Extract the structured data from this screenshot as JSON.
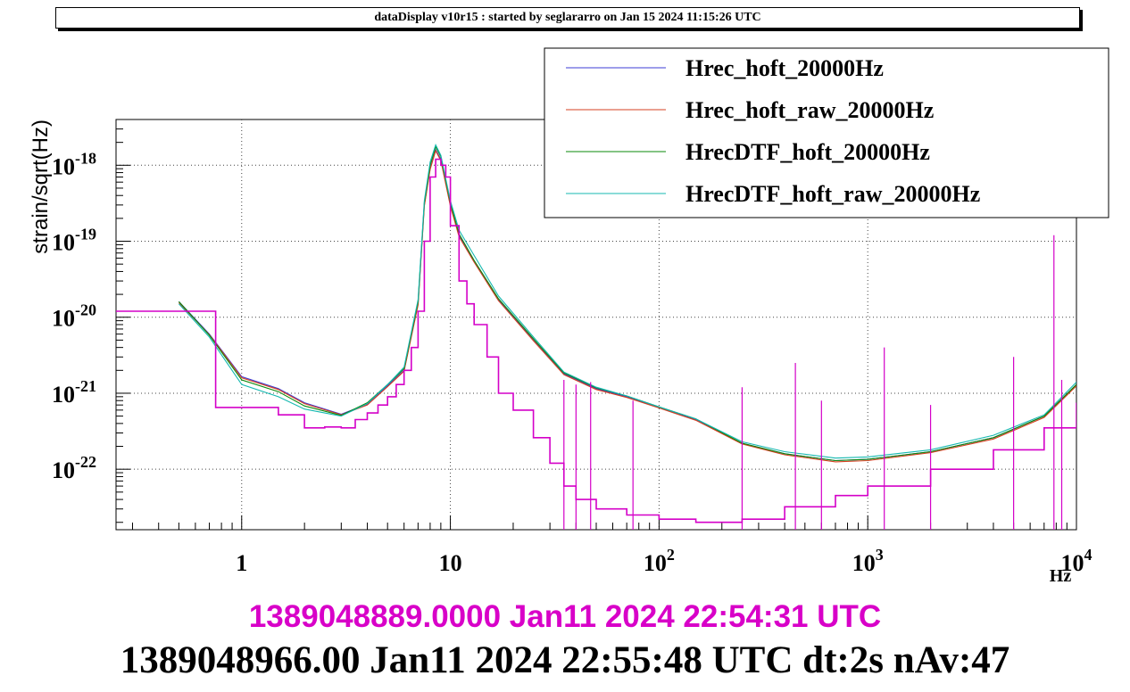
{
  "header": {
    "title": "dataDisplay v10r15 : started by seglararro on Jan 15 2024 11:15:26 UTC"
  },
  "footer": {
    "timestamp_start": "1389048889.0000 Jan11 2024 22:54:31 UTC",
    "timestamp_end": "1389048966.00 Jan11 2024 22:55:48 UTC dt:2s nAv:47"
  },
  "colors": {
    "Hrec_hoft_20000Hz": "#3c3cd6",
    "Hrec_hoft_raw_20000Hz": "#d64020",
    "HrecDTF_hoft_20000Hz": "#0a8a0a",
    "HrecDTF_hoft_raw_20000Hz": "#14b8b0",
    "overlay": "#d400c8"
  },
  "chart_data": {
    "type": "line",
    "title": "",
    "xlabel": "Hz",
    "ylabel": "strain/sqrt(Hz)",
    "xscale": "log",
    "yscale": "log",
    "xlim": [
      0.25,
      10000
    ],
    "ylim": [
      1.6e-23,
      4e-18
    ],
    "grid": true,
    "legend_position": "top-right",
    "x_ticks": [
      {
        "value": 1,
        "base": "1",
        "exp": ""
      },
      {
        "value": 10,
        "base": "10",
        "exp": ""
      },
      {
        "value": 100,
        "base": "10",
        "exp": "2"
      },
      {
        "value": 1000,
        "base": "10",
        "exp": "3"
      },
      {
        "value": 10000,
        "base": "10",
        "exp": "4"
      }
    ],
    "y_ticks": [
      {
        "value": 1e-22,
        "base": "10",
        "exp": "-22"
      },
      {
        "value": 1e-21,
        "base": "10",
        "exp": "-21"
      },
      {
        "value": 1e-20,
        "base": "10",
        "exp": "-20"
      },
      {
        "value": 1e-19,
        "base": "10",
        "exp": "-19"
      },
      {
        "value": 1e-18,
        "base": "10",
        "exp": "-18"
      }
    ],
    "series": [
      {
        "name": "Hrec_hoft_20000Hz",
        "x": [
          0.5,
          0.7,
          1.0,
          1.5,
          2.0,
          3.0,
          4.0,
          5.0,
          6.0,
          7.0,
          7.5,
          8.0,
          8.5,
          9.0,
          10.0,
          11.0,
          13.0,
          17.0,
          25.0,
          35.0,
          50.0,
          70.0,
          100.0,
          150.0,
          250.0,
          400.0,
          700.0,
          1000.0,
          2000.0,
          4000.0,
          7000.0,
          10000.0
        ],
        "y": [
          1.6e-20,
          6e-21,
          1.65e-21,
          1.15e-21,
          7.5e-22,
          5.3e-22,
          7.2e-22,
          1.25e-21,
          2e-21,
          1.5e-20,
          3e-19,
          9e-19,
          1.6e-18,
          1.2e-18,
          3e-19,
          1.2e-19,
          5.5e-20,
          1.7e-20,
          5e-21,
          1.8e-21,
          1.15e-21,
          9e-22,
          6.5e-22,
          4.5e-22,
          2.2e-22,
          1.6e-22,
          1.3e-22,
          1.35e-22,
          1.7e-22,
          2.6e-22,
          5e-22,
          1.3e-21
        ]
      },
      {
        "name": "Hrec_hoft_raw_20000Hz",
        "x": [
          0.5,
          0.7,
          1.0,
          1.5,
          2.0,
          3.0,
          4.0,
          5.0,
          6.0,
          7.0,
          7.5,
          8.0,
          8.5,
          9.0,
          10.0,
          11.0,
          13.0,
          17.0,
          25.0,
          35.0,
          50.0,
          70.0,
          100.0,
          150.0,
          250.0,
          400.0,
          700.0,
          1000.0,
          2000.0,
          4000.0,
          7000.0,
          10000.0
        ],
        "y": [
          1.55e-20,
          5.9e-21,
          1.6e-21,
          1.12e-21,
          7.3e-22,
          5.2e-22,
          7e-22,
          1.22e-21,
          1.95e-21,
          1.45e-20,
          2.9e-19,
          8.8e-19,
          1.55e-18,
          1.15e-18,
          2.9e-19,
          1.15e-19,
          5.3e-20,
          1.65e-20,
          4.9e-21,
          1.75e-21,
          1.12e-21,
          8.8e-22,
          6.4e-22,
          4.4e-22,
          2.15e-22,
          1.55e-22,
          1.25e-22,
          1.3e-22,
          1.65e-22,
          2.5e-22,
          4.8e-22,
          1.25e-21
        ]
      },
      {
        "name": "HrecDTF_hoft_20000Hz",
        "x": [
          0.5,
          0.7,
          1.0,
          1.5,
          2.0,
          3.0,
          4.0,
          5.0,
          6.0,
          7.0,
          7.5,
          8.0,
          8.5,
          9.0,
          10.0,
          11.0,
          13.0,
          17.0,
          25.0,
          35.0,
          50.0,
          70.0,
          100.0,
          150.0,
          250.0,
          400.0,
          700.0,
          1000.0,
          2000.0,
          4000.0,
          7000.0,
          10000.0
        ],
        "y": [
          1.6e-20,
          5.8e-21,
          1.5e-21,
          1.05e-21,
          6.8e-22,
          5.1e-22,
          7.5e-22,
          1.3e-21,
          2.1e-21,
          1.6e-20,
          3.2e-19,
          1e-18,
          1.75e-18,
          1.3e-18,
          3.2e-19,
          1.25e-19,
          5.6e-20,
          1.75e-20,
          5.2e-21,
          1.85e-21,
          1.18e-21,
          9.2e-22,
          6.6e-22,
          4.6e-22,
          2.2e-22,
          1.6e-22,
          1.3e-22,
          1.35e-22,
          1.7e-22,
          2.6e-22,
          5e-22,
          1.3e-21
        ]
      },
      {
        "name": "HrecDTF_hoft_raw_20000Hz",
        "x": [
          0.5,
          0.7,
          1.0,
          1.5,
          2.0,
          3.0,
          4.0,
          5.0,
          6.0,
          7.0,
          7.5,
          8.0,
          8.5,
          9.0,
          10.0,
          11.0,
          13.0,
          17.0,
          25.0,
          35.0,
          50.0,
          70.0,
          100.0,
          150.0,
          250.0,
          400.0,
          700.0,
          1000.0,
          2000.0,
          4000.0,
          7000.0,
          10000.0
        ],
        "y": [
          1.5e-20,
          5.5e-21,
          1.3e-21,
          9e-22,
          6.2e-22,
          5e-22,
          7.3e-22,
          1.3e-21,
          2.2e-21,
          1.7e-20,
          3.4e-19,
          1.1e-18,
          1.85e-18,
          1.35e-18,
          3.4e-19,
          1.4e-19,
          6.5e-20,
          1.9e-20,
          5.5e-21,
          1.9e-21,
          1.2e-21,
          9.2e-22,
          6.6e-22,
          4.6e-22,
          2.3e-22,
          1.7e-22,
          1.4e-22,
          1.45e-22,
          1.8e-22,
          2.8e-22,
          5.2e-22,
          1.4e-21
        ]
      },
      {
        "x": [
          0.25,
          0.75,
          1.0,
          1.5,
          2.0,
          2.5,
          3.0,
          3.5,
          4.0,
          4.5,
          5.0,
          5.5,
          6.0,
          6.5,
          7.0,
          7.5,
          8.0,
          8.5,
          9.0,
          9.5,
          10.0,
          11.0,
          12.0,
          13.0,
          15.0,
          17.0,
          20.0,
          25.0,
          30.0,
          35.0,
          40.0,
          50.0,
          70.0,
          100.0,
          150.0,
          250.0,
          400.0,
          700.0,
          1000.0,
          2000.0,
          4000.0,
          7000.0,
          10000.0
        ],
        "y": [
          1.2e-20,
          6.5e-22,
          6.5e-22,
          5.2e-22,
          3.5e-22,
          3.6e-22,
          3.5e-22,
          4.5e-22,
          5.5e-22,
          7e-22,
          9e-22,
          1.3e-21,
          2e-21,
          4e-21,
          1.2e-20,
          1e-19,
          7e-19,
          1.2e-18,
          1e-18,
          7e-19,
          1.6e-19,
          3e-20,
          1.5e-20,
          8e-21,
          3e-21,
          1e-21,
          6e-22,
          2.6e-22,
          1.2e-22,
          6e-23,
          4e-23,
          3e-23,
          2.5e-23,
          2.2e-23,
          2e-23,
          2.2e-23,
          3.2e-23,
          4.5e-23,
          6e-23,
          1e-22,
          1.8e-22,
          3.5e-22,
          7.5e-22
        ]
      }
    ],
    "spikes": [
      {
        "x": 35,
        "y": 1.5e-21
      },
      {
        "x": 40,
        "y": 1.3e-21
      },
      {
        "x": 47,
        "y": 1.4e-21
      },
      {
        "x": 75,
        "y": 8e-22
      },
      {
        "x": 250,
        "y": 1.2e-21
      },
      {
        "x": 450,
        "y": 2.5e-21
      },
      {
        "x": 600,
        "y": 8e-22
      },
      {
        "x": 1200,
        "y": 4e-21
      },
      {
        "x": 2000,
        "y": 7e-22
      },
      {
        "x": 5000,
        "y": 3e-21
      },
      {
        "x": 7800,
        "y": 1.2e-19
      },
      {
        "x": 8500,
        "y": 1.5e-21
      }
    ]
  }
}
